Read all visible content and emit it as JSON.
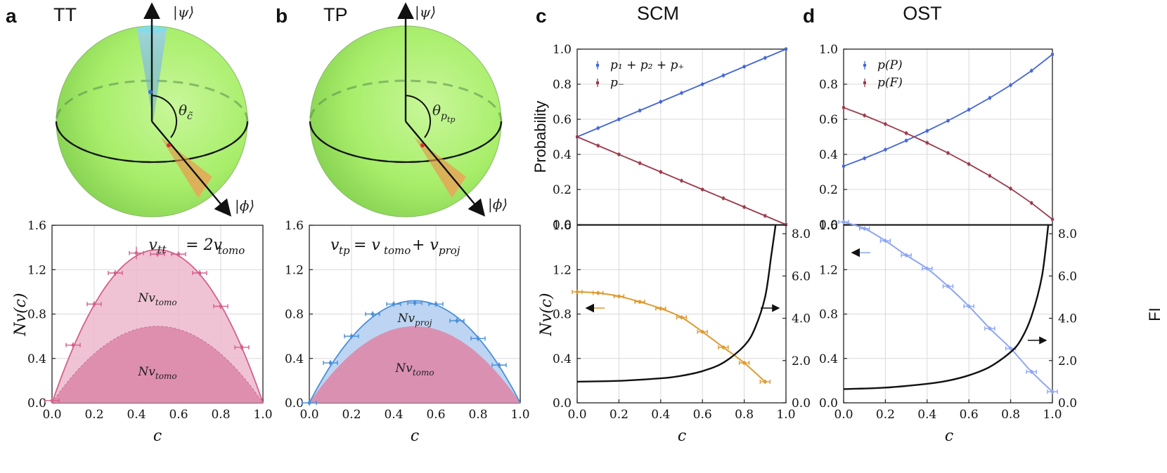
{
  "panel_labels": [
    "a",
    "b",
    "c",
    "d"
  ],
  "sphere_a": {
    "title": "TT",
    "ket_psi": "|ψ⟩",
    "ket_phi": "|ϕ⟩",
    "angle_label": "θ",
    "angle_sub": "c̃"
  },
  "sphere_b": {
    "title": "TP",
    "ket_psi": "|ψ⟩",
    "ket_phi": "|ϕ⟩",
    "angle_label": "θ",
    "angle_sub": "p",
    "angle_subsub": "tp"
  },
  "panel_c_title": "SCM",
  "panel_d_title": "OST",
  "colors": {
    "pink": "#d4608c",
    "pink_light": "#ecb8cb",
    "pink_dark": "#dd8aaa",
    "blue": "#4a90d9",
    "blue_fill": "#b9d3f1",
    "royal": "#4466d6",
    "maroon": "#9b3b4b",
    "orange": "#de9a2e",
    "periwinkle": "#8ea6f2",
    "black": "#111111",
    "sphere": "#a8ef6a"
  },
  "chart_data": [
    {
      "id": "a-bottom",
      "type": "area",
      "title": "",
      "equation": "v_tt = 2v_tomo",
      "xlabel": "c",
      "ylabel": "Nv(c)",
      "xlim": [
        0.0,
        1.0
      ],
      "ylim": [
        0.0,
        1.6
      ],
      "xticks": [
        "0.0",
        "0.2",
        "0.4",
        "0.6",
        "0.8",
        "1.0"
      ],
      "yticks": [
        "0.0",
        "0.4",
        "0.8",
        "1.2",
        "1.6"
      ],
      "area_labels": [
        "Nv_tomo",
        "Nv_tomo"
      ],
      "series": [
        {
          "name": "Nv_tomo (lower band)",
          "peak": 0.69
        },
        {
          "name": "Nv_tt theory",
          "peak": 1.38
        },
        {
          "name": "Nv_tt data",
          "x": [
            0.0,
            0.1,
            0.2,
            0.3,
            0.4,
            0.5,
            0.6,
            0.7,
            0.8,
            0.9
          ],
          "y": [
            0.02,
            0.52,
            0.89,
            1.17,
            1.35,
            1.34,
            1.34,
            1.17,
            0.87,
            0.5
          ]
        }
      ]
    },
    {
      "id": "b-bottom",
      "type": "area",
      "equation": "v_tp = v_tomo + v_proj",
      "xlabel": "c",
      "ylabel": "",
      "xlim": [
        0.0,
        1.0
      ],
      "ylim": [
        0.0,
        1.6
      ],
      "xticks": [
        "0.0",
        "0.2",
        "0.4",
        "0.6",
        "0.8",
        "1.0"
      ],
      "yticks": [
        "0.0",
        "0.4",
        "0.8",
        "1.2",
        "1.6"
      ],
      "area_labels": [
        "Nv_proj",
        "Nv_tomo"
      ],
      "series": [
        {
          "name": "Nv_tomo (lower band)",
          "peak": 0.69
        },
        {
          "name": "Nv_tp theory",
          "peak": 0.92
        },
        {
          "name": "Nv_tp data",
          "x": [
            0.0,
            0.1,
            0.2,
            0.3,
            0.4,
            0.5,
            0.6,
            0.7,
            0.8,
            0.9
          ],
          "y": [
            0.0,
            0.36,
            0.6,
            0.8,
            0.89,
            0.9,
            0.89,
            0.74,
            0.58,
            0.34
          ]
        }
      ]
    },
    {
      "id": "c-top",
      "type": "line",
      "title": "SCM",
      "ylabel": "Probability",
      "xlim": [
        0.0,
        1.0
      ],
      "ylim": [
        0.0,
        1.0
      ],
      "yticks": [
        "0.0",
        "0.2",
        "0.4",
        "0.6",
        "0.8",
        "1.0"
      ],
      "legend": [
        "p₁ + p₂ + p₊",
        "p₋"
      ],
      "series": [
        {
          "name": "p1 + p2 + p+",
          "x": [
            0.0,
            0.1,
            0.2,
            0.3,
            0.4,
            0.5,
            0.6,
            0.7,
            0.8,
            0.9,
            1.0
          ],
          "y": [
            0.5,
            0.55,
            0.6,
            0.65,
            0.7,
            0.75,
            0.8,
            0.85,
            0.9,
            0.95,
            1.0
          ]
        },
        {
          "name": "p-",
          "x": [
            0.0,
            0.1,
            0.2,
            0.3,
            0.4,
            0.5,
            0.6,
            0.7,
            0.8,
            0.9,
            1.0
          ],
          "y": [
            0.5,
            0.45,
            0.4,
            0.35,
            0.3,
            0.25,
            0.2,
            0.15,
            0.1,
            0.05,
            0.0
          ]
        }
      ]
    },
    {
      "id": "c-bottom",
      "type": "line",
      "xlabel": "c",
      "ylabel": "Nv(c)",
      "xlim": [
        0.0,
        1.0
      ],
      "ylim": [
        0.0,
        1.6
      ],
      "y2lim": [
        0.0,
        8.4
      ],
      "xticks": [
        "0.0",
        "0.2",
        "0.4",
        "0.6",
        "0.8",
        "1.0"
      ],
      "yticks": [
        "0.0",
        "0.4",
        "0.8",
        "1.2",
        "1.6"
      ],
      "y2ticks": [
        "0.0",
        "2.0",
        "4.0",
        "6.0",
        "8.0"
      ],
      "series": [
        {
          "name": "Nv(c)",
          "x": [
            0.0,
            0.1,
            0.2,
            0.3,
            0.4,
            0.5,
            0.6,
            0.7,
            0.8,
            0.9
          ],
          "y": [
            1.0,
            0.99,
            0.96,
            0.91,
            0.85,
            0.77,
            0.64,
            0.5,
            0.36,
            0.19
          ]
        },
        {
          "name": "FI",
          "axis": "right",
          "x": [
            0.0,
            0.2,
            0.4,
            0.5,
            0.6,
            0.7,
            0.8,
            0.85,
            0.9,
            0.93,
            0.95
          ],
          "y": [
            1.0,
            1.04,
            1.16,
            1.28,
            1.5,
            1.9,
            2.7,
            3.5,
            5.0,
            7.0,
            8.4
          ]
        }
      ]
    },
    {
      "id": "d-top",
      "type": "line",
      "title": "OST",
      "xlim": [
        0.0,
        1.0
      ],
      "ylim": [
        0.0,
        1.0
      ],
      "yticks": [
        "0.0",
        "0.2",
        "0.4",
        "0.6",
        "0.8",
        "1.0"
      ],
      "legend": [
        "p(P)",
        "p(F)"
      ],
      "series": [
        {
          "name": "p(P)",
          "x": [
            0.0,
            0.1,
            0.2,
            0.3,
            0.4,
            0.5,
            0.6,
            0.7,
            0.8,
            0.9,
            1.0
          ],
          "y": [
            0.333,
            0.378,
            0.427,
            0.479,
            0.534,
            0.592,
            0.655,
            0.722,
            0.795,
            0.877,
            0.97
          ]
        },
        {
          "name": "p(F)",
          "x": [
            0.0,
            0.1,
            0.2,
            0.3,
            0.4,
            0.5,
            0.6,
            0.7,
            0.8,
            0.9,
            1.0
          ],
          "y": [
            0.667,
            0.622,
            0.573,
            0.521,
            0.466,
            0.408,
            0.345,
            0.278,
            0.205,
            0.123,
            0.03
          ]
        }
      ]
    },
    {
      "id": "d-bottom",
      "type": "line",
      "xlabel": "c",
      "ylabel": "",
      "y2label": "FI",
      "xlim": [
        0.0,
        1.0
      ],
      "ylim": [
        0.0,
        1.6
      ],
      "y2lim": [
        0.0,
        8.4
      ],
      "xticks": [
        "0.0",
        "0.2",
        "0.4",
        "0.6",
        "0.8",
        "1.0"
      ],
      "yticks": [
        "0.0",
        "0.4",
        "0.8",
        "1.2",
        "1.6"
      ],
      "y2ticks": [
        "0.0",
        "2.0",
        "4.0",
        "6.0",
        "8.0"
      ],
      "series": [
        {
          "name": "Nv(c)",
          "x": [
            0.0,
            0.1,
            0.2,
            0.3,
            0.4,
            0.5,
            0.6,
            0.7,
            0.8,
            0.9,
            1.0
          ],
          "y": [
            1.63,
            1.57,
            1.46,
            1.33,
            1.21,
            1.05,
            0.87,
            0.67,
            0.49,
            0.28,
            0.1
          ]
        },
        {
          "name": "FI",
          "axis": "right",
          "x": [
            0.0,
            0.2,
            0.4,
            0.5,
            0.6,
            0.7,
            0.8,
            0.85,
            0.9,
            0.95,
            0.98
          ],
          "y": [
            0.65,
            0.72,
            0.9,
            1.05,
            1.3,
            1.7,
            2.4,
            3.0,
            4.1,
            6.0,
            8.4
          ]
        }
      ]
    }
  ]
}
